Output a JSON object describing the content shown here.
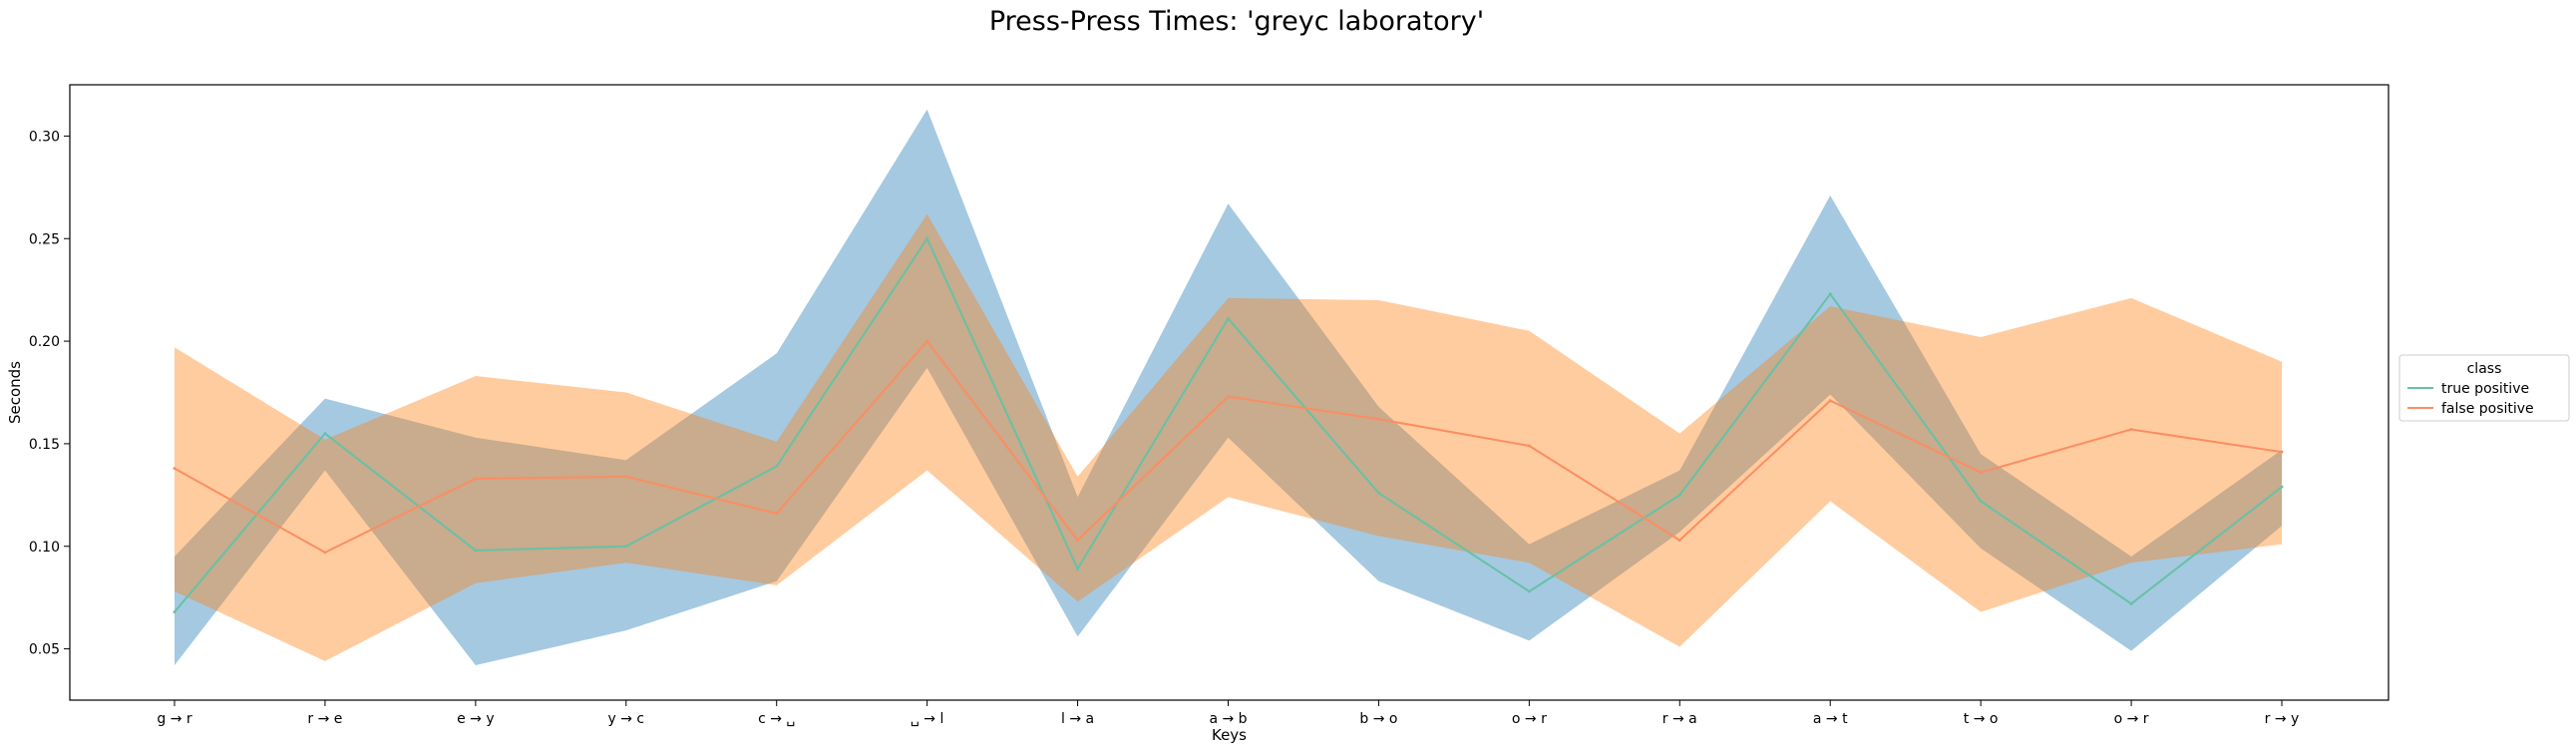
{
  "chart_data": {
    "type": "line",
    "title": "Press-Press Times: 'greyc laboratory'",
    "xlabel": "Keys",
    "ylabel": "Seconds",
    "categories": [
      "g → r",
      "r → e",
      "e → y",
      "y → c",
      "c → ␣",
      "␣ → l",
      "l → a",
      "a → b",
      "b → o",
      "o → r",
      "r → a",
      "a → t",
      "t → o",
      "o → r",
      "r → y"
    ],
    "ylim": [
      0.025,
      0.325
    ],
    "yticks": [
      0.05,
      0.1,
      0.15,
      0.2,
      0.25,
      0.3
    ],
    "yticklabels": [
      "0.05",
      "0.10",
      "0.15",
      "0.20",
      "0.25",
      "0.30"
    ],
    "grid": false,
    "legend": {
      "title": "class",
      "placement": "right-outside"
    },
    "series": [
      {
        "name": "true positive",
        "line_color": "#66c2a5",
        "band_color": "#1f77b4",
        "values": [
          0.068,
          0.155,
          0.098,
          0.1,
          0.139,
          0.25,
          0.089,
          0.211,
          0.126,
          0.078,
          0.125,
          0.223,
          0.122,
          0.072,
          0.129
        ],
        "lower": [
          0.042,
          0.137,
          0.042,
          0.059,
          0.083,
          0.187,
          0.056,
          0.153,
          0.083,
          0.054,
          0.107,
          0.174,
          0.099,
          0.049,
          0.11
        ],
        "upper": [
          0.095,
          0.172,
          0.153,
          0.142,
          0.194,
          0.313,
          0.124,
          0.267,
          0.168,
          0.101,
          0.137,
          0.271,
          0.145,
          0.095,
          0.147
        ]
      },
      {
        "name": "false positive",
        "line_color": "#fc8d62",
        "band_color": "#ff7f0e",
        "values": [
          0.138,
          0.097,
          0.133,
          0.134,
          0.116,
          0.2,
          0.103,
          0.173,
          0.162,
          0.149,
          0.103,
          0.171,
          0.136,
          0.157,
          0.146
        ],
        "lower": [
          0.078,
          0.044,
          0.082,
          0.092,
          0.081,
          0.137,
          0.073,
          0.124,
          0.105,
          0.092,
          0.051,
          0.122,
          0.068,
          0.092,
          0.101
        ],
        "upper": [
          0.197,
          0.152,
          0.183,
          0.175,
          0.151,
          0.262,
          0.134,
          0.221,
          0.22,
          0.205,
          0.155,
          0.217,
          0.202,
          0.221,
          0.19
        ]
      }
    ]
  }
}
